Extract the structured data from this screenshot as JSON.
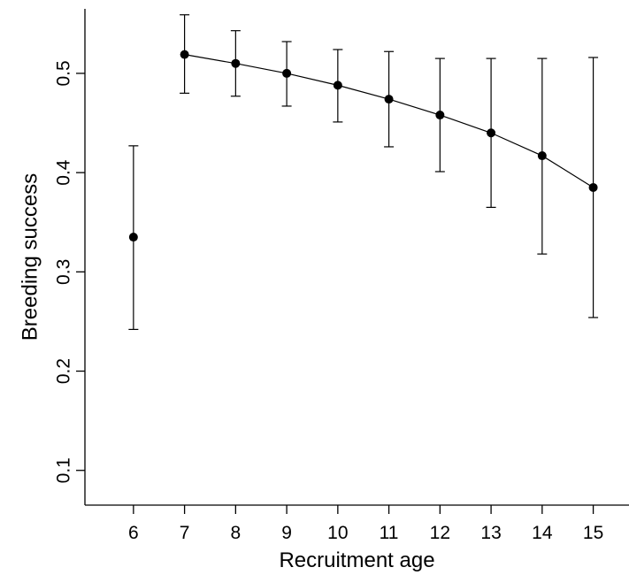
{
  "chart_data": {
    "type": "scatter",
    "xlabel": "Recruitment age",
    "ylabel": "Breeding success",
    "xlim": [
      5.05,
      15.7
    ],
    "ylim": [
      0.065,
      0.565
    ],
    "x_ticks": [
      6,
      7,
      8,
      9,
      10,
      11,
      12,
      13,
      14,
      15
    ],
    "y_ticks": [
      0.1,
      0.2,
      0.3,
      0.4,
      0.5
    ],
    "x_tick_labels": [
      "6",
      "7",
      "8",
      "9",
      "10",
      "11",
      "12",
      "13",
      "14",
      "15"
    ],
    "y_tick_labels": [
      "0.1",
      "0.2",
      "0.3",
      "0.4",
      "0.5"
    ],
    "grid": false,
    "points": [
      {
        "x": 6,
        "y": 0.335,
        "lower": 0.242,
        "upper": 0.427
      },
      {
        "x": 7,
        "y": 0.519,
        "lower": 0.48,
        "upper": 0.559
      },
      {
        "x": 8,
        "y": 0.51,
        "lower": 0.477,
        "upper": 0.543
      },
      {
        "x": 9,
        "y": 0.5,
        "lower": 0.467,
        "upper": 0.532
      },
      {
        "x": 10,
        "y": 0.488,
        "lower": 0.451,
        "upper": 0.524
      },
      {
        "x": 11,
        "y": 0.474,
        "lower": 0.426,
        "upper": 0.522
      },
      {
        "x": 12,
        "y": 0.458,
        "lower": 0.401,
        "upper": 0.515
      },
      {
        "x": 13,
        "y": 0.44,
        "lower": 0.365,
        "upper": 0.515
      },
      {
        "x": 14,
        "y": 0.417,
        "lower": 0.318,
        "upper": 0.515
      },
      {
        "x": 15,
        "y": 0.385,
        "lower": 0.254,
        "upper": 0.516
      }
    ],
    "line_from_x": 7,
    "colors": {
      "marks": "#000000",
      "background": "#ffffff"
    }
  }
}
